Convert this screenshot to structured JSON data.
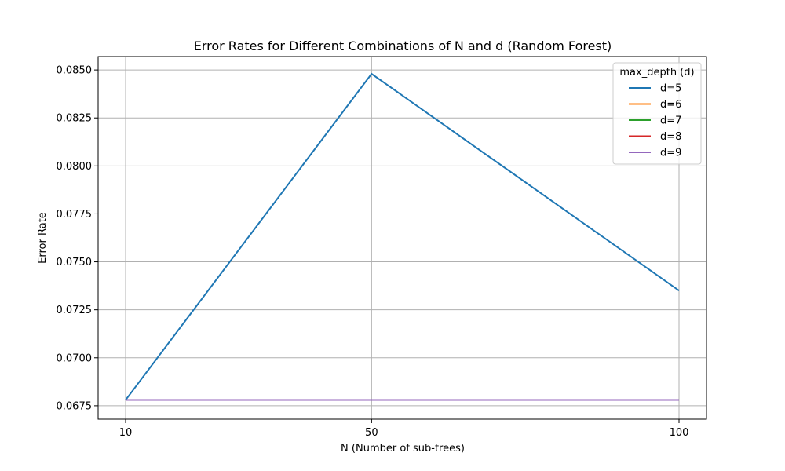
{
  "chart_data": {
    "type": "line",
    "title": "Error Rates for Different Combinations of N and d (Random Forest)",
    "xlabel": "N (Number of sub-trees)",
    "ylabel": "Error Rate",
    "x": [
      10,
      50,
      100
    ],
    "x_tick_labels": [
      "10",
      "50",
      "100"
    ],
    "ylim": [
      0.0668,
      0.0857
    ],
    "y_ticks": [
      0.0675,
      0.07,
      0.0725,
      0.075,
      0.0775,
      0.08,
      0.0825,
      0.085
    ],
    "y_tick_labels": [
      "0.0675",
      "0.0700",
      "0.0725",
      "0.0750",
      "0.0775",
      "0.0800",
      "0.0825",
      "0.0850"
    ],
    "grid": true,
    "legend_title": "max_depth (d)",
    "legend_placement": "top-right",
    "series": [
      {
        "name": "d=5",
        "color": "#1f77b4",
        "values": [
          0.0678,
          0.0848,
          0.0735
        ]
      },
      {
        "name": "d=6",
        "color": "#ff7f0e",
        "values": [
          0.0678,
          0.0678,
          0.0678
        ]
      },
      {
        "name": "d=7",
        "color": "#2ca02c",
        "values": [
          0.0678,
          0.0678,
          0.0678
        ]
      },
      {
        "name": "d=8",
        "color": "#d62728",
        "values": [
          0.0678,
          0.0678,
          0.0678
        ]
      },
      {
        "name": "d=9",
        "color": "#9467bd",
        "values": [
          0.0678,
          0.0678,
          0.0678
        ]
      }
    ]
  }
}
